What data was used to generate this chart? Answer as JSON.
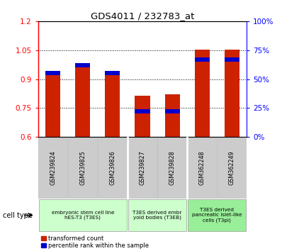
{
  "title": "GDS4011 / 232783_at",
  "samples": [
    "GSM239824",
    "GSM239825",
    "GSM239826",
    "GSM239827",
    "GSM239828",
    "GSM362248",
    "GSM362249"
  ],
  "transformed_count": [
    0.935,
    0.965,
    0.935,
    0.815,
    0.82,
    1.053,
    1.053
  ],
  "percentile_rank_pct": [
    55,
    62,
    55,
    22,
    22,
    67,
    67
  ],
  "ylim_left": [
    0.6,
    1.2
  ],
  "ylim_right": [
    0,
    100
  ],
  "yticks_left": [
    0.6,
    0.75,
    0.9,
    1.05,
    1.2
  ],
  "yticks_right": [
    0,
    25,
    50,
    75,
    100
  ],
  "ytick_labels_left": [
    "0.6",
    "0.75",
    "0.9",
    "1.05",
    "1.2"
  ],
  "ytick_labels_right": [
    "0%",
    "25%",
    "50%",
    "75%",
    "100%"
  ],
  "bar_color_red": "#cc2200",
  "bar_color_blue": "#0000cc",
  "cell_groups": [
    {
      "label": "embryonic stem cell line\nhES-T3 (T3ES)",
      "start": 0,
      "end": 2,
      "color": "#ccffcc"
    },
    {
      "label": "T3ES derived embr\nyoid bodies (T3EB)",
      "start": 3,
      "end": 4,
      "color": "#ccffcc"
    },
    {
      "label": "T3ES derived\npancreatic islet-like\ncells (T3pi)",
      "start": 5,
      "end": 6,
      "color": "#99ee99"
    }
  ],
  "legend_red_label": "transformed count",
  "legend_blue_label": "percentile rank within the sample",
  "cell_type_label": "cell type",
  "bar_width": 0.5
}
